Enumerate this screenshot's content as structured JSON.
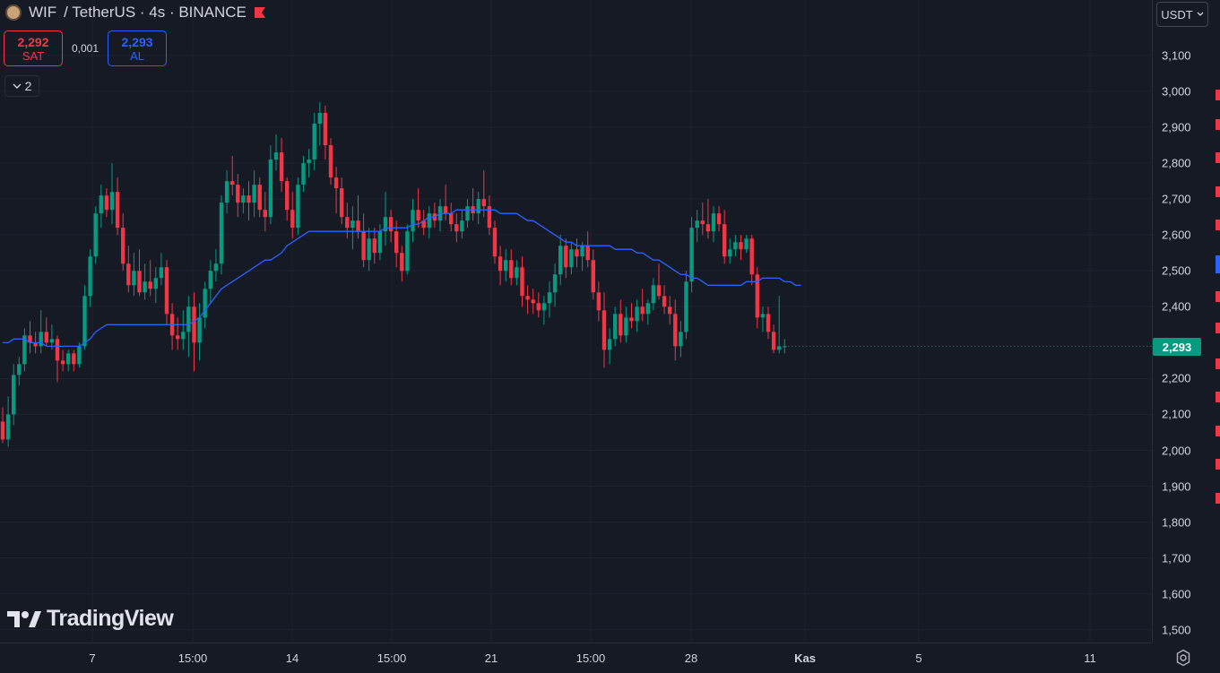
{
  "header": {
    "symbol": "WIF",
    "pair_label": "/ TetherUS · 4s · BINANCE",
    "symbol_icon": "wif-coin-icon",
    "flag_icon": "flag-icon"
  },
  "trade": {
    "sell_price": "2,292",
    "sell_label": "SAT",
    "spread": "0,001",
    "buy_price": "2,293",
    "buy_label": "AL"
  },
  "indicators_toggle": {
    "count": "2",
    "icon": "chevron-down-icon"
  },
  "currency": {
    "label": "USDT",
    "icon": "chevron-down-icon"
  },
  "last_price": "2,293",
  "logo": {
    "text": "TradingView"
  },
  "price_axis": {
    "ticks": [
      "3,100",
      "3,000",
      "2,900",
      "2,800",
      "2,700",
      "2,600",
      "2,500",
      "2,400",
      "2,200",
      "2,100",
      "2,000",
      "1,900",
      "1,800",
      "1,700",
      "1,600",
      "1,500"
    ]
  },
  "time_axis": {
    "ticks": [
      {
        "label": "7",
        "bold": false
      },
      {
        "label": "15:00",
        "bold": false
      },
      {
        "label": "14",
        "bold": false
      },
      {
        "label": "15:00",
        "bold": false
      },
      {
        "label": "21",
        "bold": false
      },
      {
        "label": "15:00",
        "bold": false
      },
      {
        "label": "28",
        "bold": false
      },
      {
        "label": "Kas",
        "bold": true
      },
      {
        "label": "5",
        "bold": false
      },
      {
        "label": "11",
        "bold": false
      }
    ]
  },
  "colors": {
    "background": "#161a25",
    "up": "#089981",
    "down": "#f23645",
    "ma_line": "#2962ff",
    "grid": "#1f2331"
  },
  "chart_data": {
    "type": "candlestick",
    "title": "WIF / TetherUS · 4s · BINANCE",
    "ylim": [
      1.45,
      3.18
    ],
    "moving_average": [
      2.3,
      2.3,
      2.31,
      2.31,
      2.31,
      2.3,
      2.3,
      2.3,
      2.29,
      2.29,
      2.29,
      2.29,
      2.29,
      2.29,
      2.29,
      2.3,
      2.31,
      2.33,
      2.34,
      2.35,
      2.35,
      2.35,
      2.35,
      2.35,
      2.35,
      2.35,
      2.35,
      2.35,
      2.35,
      2.35,
      2.35,
      2.35,
      2.35,
      2.35,
      2.35,
      2.36,
      2.37,
      2.39,
      2.41,
      2.43,
      2.45,
      2.46,
      2.47,
      2.48,
      2.49,
      2.5,
      2.51,
      2.52,
      2.53,
      2.53,
      2.54,
      2.55,
      2.57,
      2.58,
      2.59,
      2.6,
      2.61,
      2.61,
      2.61,
      2.61,
      2.61,
      2.61,
      2.61,
      2.61,
      2.61,
      2.61,
      2.61,
      2.61,
      2.61,
      2.61,
      2.62,
      2.62,
      2.62,
      2.62,
      2.62,
      2.63,
      2.63,
      2.64,
      2.65,
      2.65,
      2.66,
      2.66,
      2.66,
      2.67,
      2.67,
      2.67,
      2.67,
      2.67,
      2.67,
      2.67,
      2.67,
      2.66,
      2.66,
      2.66,
      2.66,
      2.65,
      2.64,
      2.64,
      2.63,
      2.62,
      2.61,
      2.6,
      2.59,
      2.58,
      2.58,
      2.57,
      2.57,
      2.57,
      2.57,
      2.57,
      2.57,
      2.57,
      2.56,
      2.56,
      2.56,
      2.56,
      2.55,
      2.55,
      2.54,
      2.53,
      2.53,
      2.52,
      2.51,
      2.5,
      2.49,
      2.49,
      2.48,
      2.48,
      2.47,
      2.46,
      2.46,
      2.46,
      2.46,
      2.46,
      2.46,
      2.46,
      2.47,
      2.47,
      2.47,
      2.48,
      2.48,
      2.48,
      2.48,
      2.47,
      2.47,
      2.46,
      2.46
    ],
    "candles": [
      [
        2.08,
        2.12,
        2.02,
        2.03
      ],
      [
        2.03,
        2.15,
        2.01,
        2.1
      ],
      [
        2.1,
        2.24,
        2.07,
        2.21
      ],
      [
        2.21,
        2.26,
        2.18,
        2.24
      ],
      [
        2.24,
        2.34,
        2.22,
        2.32
      ],
      [
        2.32,
        2.36,
        2.27,
        2.3
      ],
      [
        2.3,
        2.33,
        2.27,
        2.29
      ],
      [
        2.29,
        2.39,
        2.27,
        2.33
      ],
      [
        2.33,
        2.37,
        2.29,
        2.3
      ],
      [
        2.3,
        2.35,
        2.28,
        2.31
      ],
      [
        2.31,
        2.32,
        2.19,
        2.25
      ],
      [
        2.25,
        2.28,
        2.22,
        2.24
      ],
      [
        2.24,
        2.28,
        2.22,
        2.27
      ],
      [
        2.27,
        2.28,
        2.22,
        2.24
      ],
      [
        2.24,
        2.3,
        2.23,
        2.29
      ],
      [
        2.29,
        2.46,
        2.28,
        2.43
      ],
      [
        2.43,
        2.56,
        2.4,
        2.54
      ],
      [
        2.54,
        2.68,
        2.52,
        2.66
      ],
      [
        2.66,
        2.74,
        2.62,
        2.71
      ],
      [
        2.71,
        2.73,
        2.65,
        2.67
      ],
      [
        2.67,
        2.8,
        2.63,
        2.72
      ],
      [
        2.72,
        2.76,
        2.6,
        2.62
      ],
      [
        2.62,
        2.66,
        2.5,
        2.52
      ],
      [
        2.52,
        2.57,
        2.44,
        2.46
      ],
      [
        2.46,
        2.55,
        2.43,
        2.5
      ],
      [
        2.5,
        2.56,
        2.43,
        2.44
      ],
      [
        2.44,
        2.52,
        2.42,
        2.47
      ],
      [
        2.47,
        2.53,
        2.43,
        2.45
      ],
      [
        2.45,
        2.51,
        2.41,
        2.48
      ],
      [
        2.48,
        2.55,
        2.46,
        2.51
      ],
      [
        2.51,
        2.53,
        2.35,
        2.38
      ],
      [
        2.38,
        2.41,
        2.28,
        2.32
      ],
      [
        2.32,
        2.37,
        2.28,
        2.31
      ],
      [
        2.31,
        2.39,
        2.28,
        2.33
      ],
      [
        2.33,
        2.43,
        2.26,
        2.4
      ],
      [
        2.4,
        2.44,
        2.22,
        2.3
      ],
      [
        2.3,
        2.41,
        2.25,
        2.37
      ],
      [
        2.37,
        2.47,
        2.34,
        2.45
      ],
      [
        2.45,
        2.53,
        2.41,
        2.5
      ],
      [
        2.5,
        2.56,
        2.47,
        2.52
      ],
      [
        2.52,
        2.71,
        2.49,
        2.69
      ],
      [
        2.69,
        2.78,
        2.66,
        2.75
      ],
      [
        2.75,
        2.82,
        2.71,
        2.74
      ],
      [
        2.74,
        2.77,
        2.65,
        2.69
      ],
      [
        2.69,
        2.73,
        2.66,
        2.71
      ],
      [
        2.71,
        2.75,
        2.64,
        2.69
      ],
      [
        2.69,
        2.78,
        2.65,
        2.74
      ],
      [
        2.74,
        2.76,
        2.65,
        2.67
      ],
      [
        2.67,
        2.72,
        2.61,
        2.65
      ],
      [
        2.65,
        2.85,
        2.63,
        2.81
      ],
      [
        2.81,
        2.88,
        2.78,
        2.83
      ],
      [
        2.83,
        2.87,
        2.72,
        2.75
      ],
      [
        2.75,
        2.76,
        2.64,
        2.67
      ],
      [
        2.67,
        2.72,
        2.59,
        2.62
      ],
      [
        2.62,
        2.76,
        2.6,
        2.74
      ],
      [
        2.74,
        2.82,
        2.72,
        2.8
      ],
      [
        2.8,
        2.84,
        2.76,
        2.81
      ],
      [
        2.81,
        2.94,
        2.78,
        2.91
      ],
      [
        2.91,
        2.97,
        2.85,
        2.94
      ],
      [
        2.94,
        2.96,
        2.81,
        2.85
      ],
      [
        2.85,
        2.87,
        2.74,
        2.76
      ],
      [
        2.76,
        2.79,
        2.66,
        2.73
      ],
      [
        2.73,
        2.76,
        2.63,
        2.65
      ],
      [
        2.65,
        2.69,
        2.59,
        2.62
      ],
      [
        2.62,
        2.68,
        2.56,
        2.64
      ],
      [
        2.64,
        2.71,
        2.59,
        2.61
      ],
      [
        2.61,
        2.66,
        2.51,
        2.53
      ],
      [
        2.53,
        2.62,
        2.5,
        2.59
      ],
      [
        2.59,
        2.62,
        2.52,
        2.55
      ],
      [
        2.55,
        2.63,
        2.53,
        2.61
      ],
      [
        2.61,
        2.72,
        2.57,
        2.65
      ],
      [
        2.65,
        2.67,
        2.58,
        2.61
      ],
      [
        2.61,
        2.64,
        2.51,
        2.55
      ],
      [
        2.55,
        2.57,
        2.47,
        2.5
      ],
      [
        2.5,
        2.63,
        2.49,
        2.61
      ],
      [
        2.61,
        2.7,
        2.58,
        2.67
      ],
      [
        2.67,
        2.73,
        2.62,
        2.64
      ],
      [
        2.64,
        2.67,
        2.6,
        2.62
      ],
      [
        2.62,
        2.68,
        2.59,
        2.66
      ],
      [
        2.66,
        2.69,
        2.62,
        2.64
      ],
      [
        2.64,
        2.7,
        2.61,
        2.68
      ],
      [
        2.68,
        2.74,
        2.64,
        2.66
      ],
      [
        2.66,
        2.69,
        2.61,
        2.63
      ],
      [
        2.63,
        2.66,
        2.58,
        2.61
      ],
      [
        2.61,
        2.67,
        2.59,
        2.64
      ],
      [
        2.64,
        2.7,
        2.62,
        2.68
      ],
      [
        2.68,
        2.73,
        2.64,
        2.66
      ],
      [
        2.66,
        2.72,
        2.63,
        2.7
      ],
      [
        2.7,
        2.78,
        2.65,
        2.68
      ],
      [
        2.68,
        2.71,
        2.6,
        2.62
      ],
      [
        2.62,
        2.64,
        2.52,
        2.54
      ],
      [
        2.54,
        2.57,
        2.46,
        2.5
      ],
      [
        2.5,
        2.56,
        2.47,
        2.53
      ],
      [
        2.53,
        2.56,
        2.46,
        2.48
      ],
      [
        2.48,
        2.53,
        2.46,
        2.51
      ],
      [
        2.51,
        2.54,
        2.4,
        2.43
      ],
      [
        2.43,
        2.46,
        2.38,
        2.42
      ],
      [
        2.42,
        2.45,
        2.38,
        2.41
      ],
      [
        2.41,
        2.44,
        2.37,
        2.39
      ],
      [
        2.39,
        2.43,
        2.35,
        2.41
      ],
      [
        2.41,
        2.47,
        2.37,
        2.44
      ],
      [
        2.44,
        2.52,
        2.4,
        2.49
      ],
      [
        2.49,
        2.6,
        2.46,
        2.57
      ],
      [
        2.57,
        2.59,
        2.48,
        2.51
      ],
      [
        2.51,
        2.58,
        2.49,
        2.56
      ],
      [
        2.56,
        2.59,
        2.51,
        2.54
      ],
      [
        2.54,
        2.58,
        2.5,
        2.57
      ],
      [
        2.57,
        2.61,
        2.51,
        2.53
      ],
      [
        2.53,
        2.56,
        2.42,
        2.44
      ],
      [
        2.44,
        2.47,
        2.36,
        2.39
      ],
      [
        2.39,
        2.44,
        2.23,
        2.28
      ],
      [
        2.28,
        2.34,
        2.24,
        2.31
      ],
      [
        2.31,
        2.4,
        2.29,
        2.38
      ],
      [
        2.38,
        2.42,
        2.3,
        2.32
      ],
      [
        2.32,
        2.4,
        2.3,
        2.37
      ],
      [
        2.37,
        2.41,
        2.34,
        2.36
      ],
      [
        2.36,
        2.42,
        2.33,
        2.4
      ],
      [
        2.4,
        2.45,
        2.36,
        2.38
      ],
      [
        2.38,
        2.42,
        2.35,
        2.41
      ],
      [
        2.41,
        2.48,
        2.39,
        2.46
      ],
      [
        2.46,
        2.52,
        2.42,
        2.43
      ],
      [
        2.43,
        2.46,
        2.38,
        2.4
      ],
      [
        2.4,
        2.43,
        2.35,
        2.38
      ],
      [
        2.38,
        2.42,
        2.25,
        2.29
      ],
      [
        2.29,
        2.36,
        2.26,
        2.33
      ],
      [
        2.33,
        2.5,
        2.31,
        2.47
      ],
      [
        2.47,
        2.65,
        2.44,
        2.62
      ],
      [
        2.62,
        2.67,
        2.58,
        2.64
      ],
      [
        2.64,
        2.69,
        2.6,
        2.63
      ],
      [
        2.63,
        2.7,
        2.59,
        2.61
      ],
      [
        2.61,
        2.68,
        2.58,
        2.66
      ],
      [
        2.66,
        2.68,
        2.61,
        2.63
      ],
      [
        2.63,
        2.67,
        2.52,
        2.54
      ],
      [
        2.54,
        2.59,
        2.52,
        2.56
      ],
      [
        2.56,
        2.6,
        2.54,
        2.58
      ],
      [
        2.58,
        2.6,
        2.53,
        2.56
      ],
      [
        2.56,
        2.6,
        2.55,
        2.59
      ],
      [
        2.59,
        2.6,
        2.46,
        2.49
      ],
      [
        2.49,
        2.51,
        2.34,
        2.37
      ],
      [
        2.37,
        2.4,
        2.33,
        2.38
      ],
      [
        2.38,
        2.4,
        2.31,
        2.33
      ],
      [
        2.33,
        2.35,
        2.27,
        2.28
      ],
      [
        2.28,
        2.43,
        2.27,
        2.29
      ],
      [
        2.29,
        2.31,
        2.27,
        2.29
      ]
    ]
  }
}
